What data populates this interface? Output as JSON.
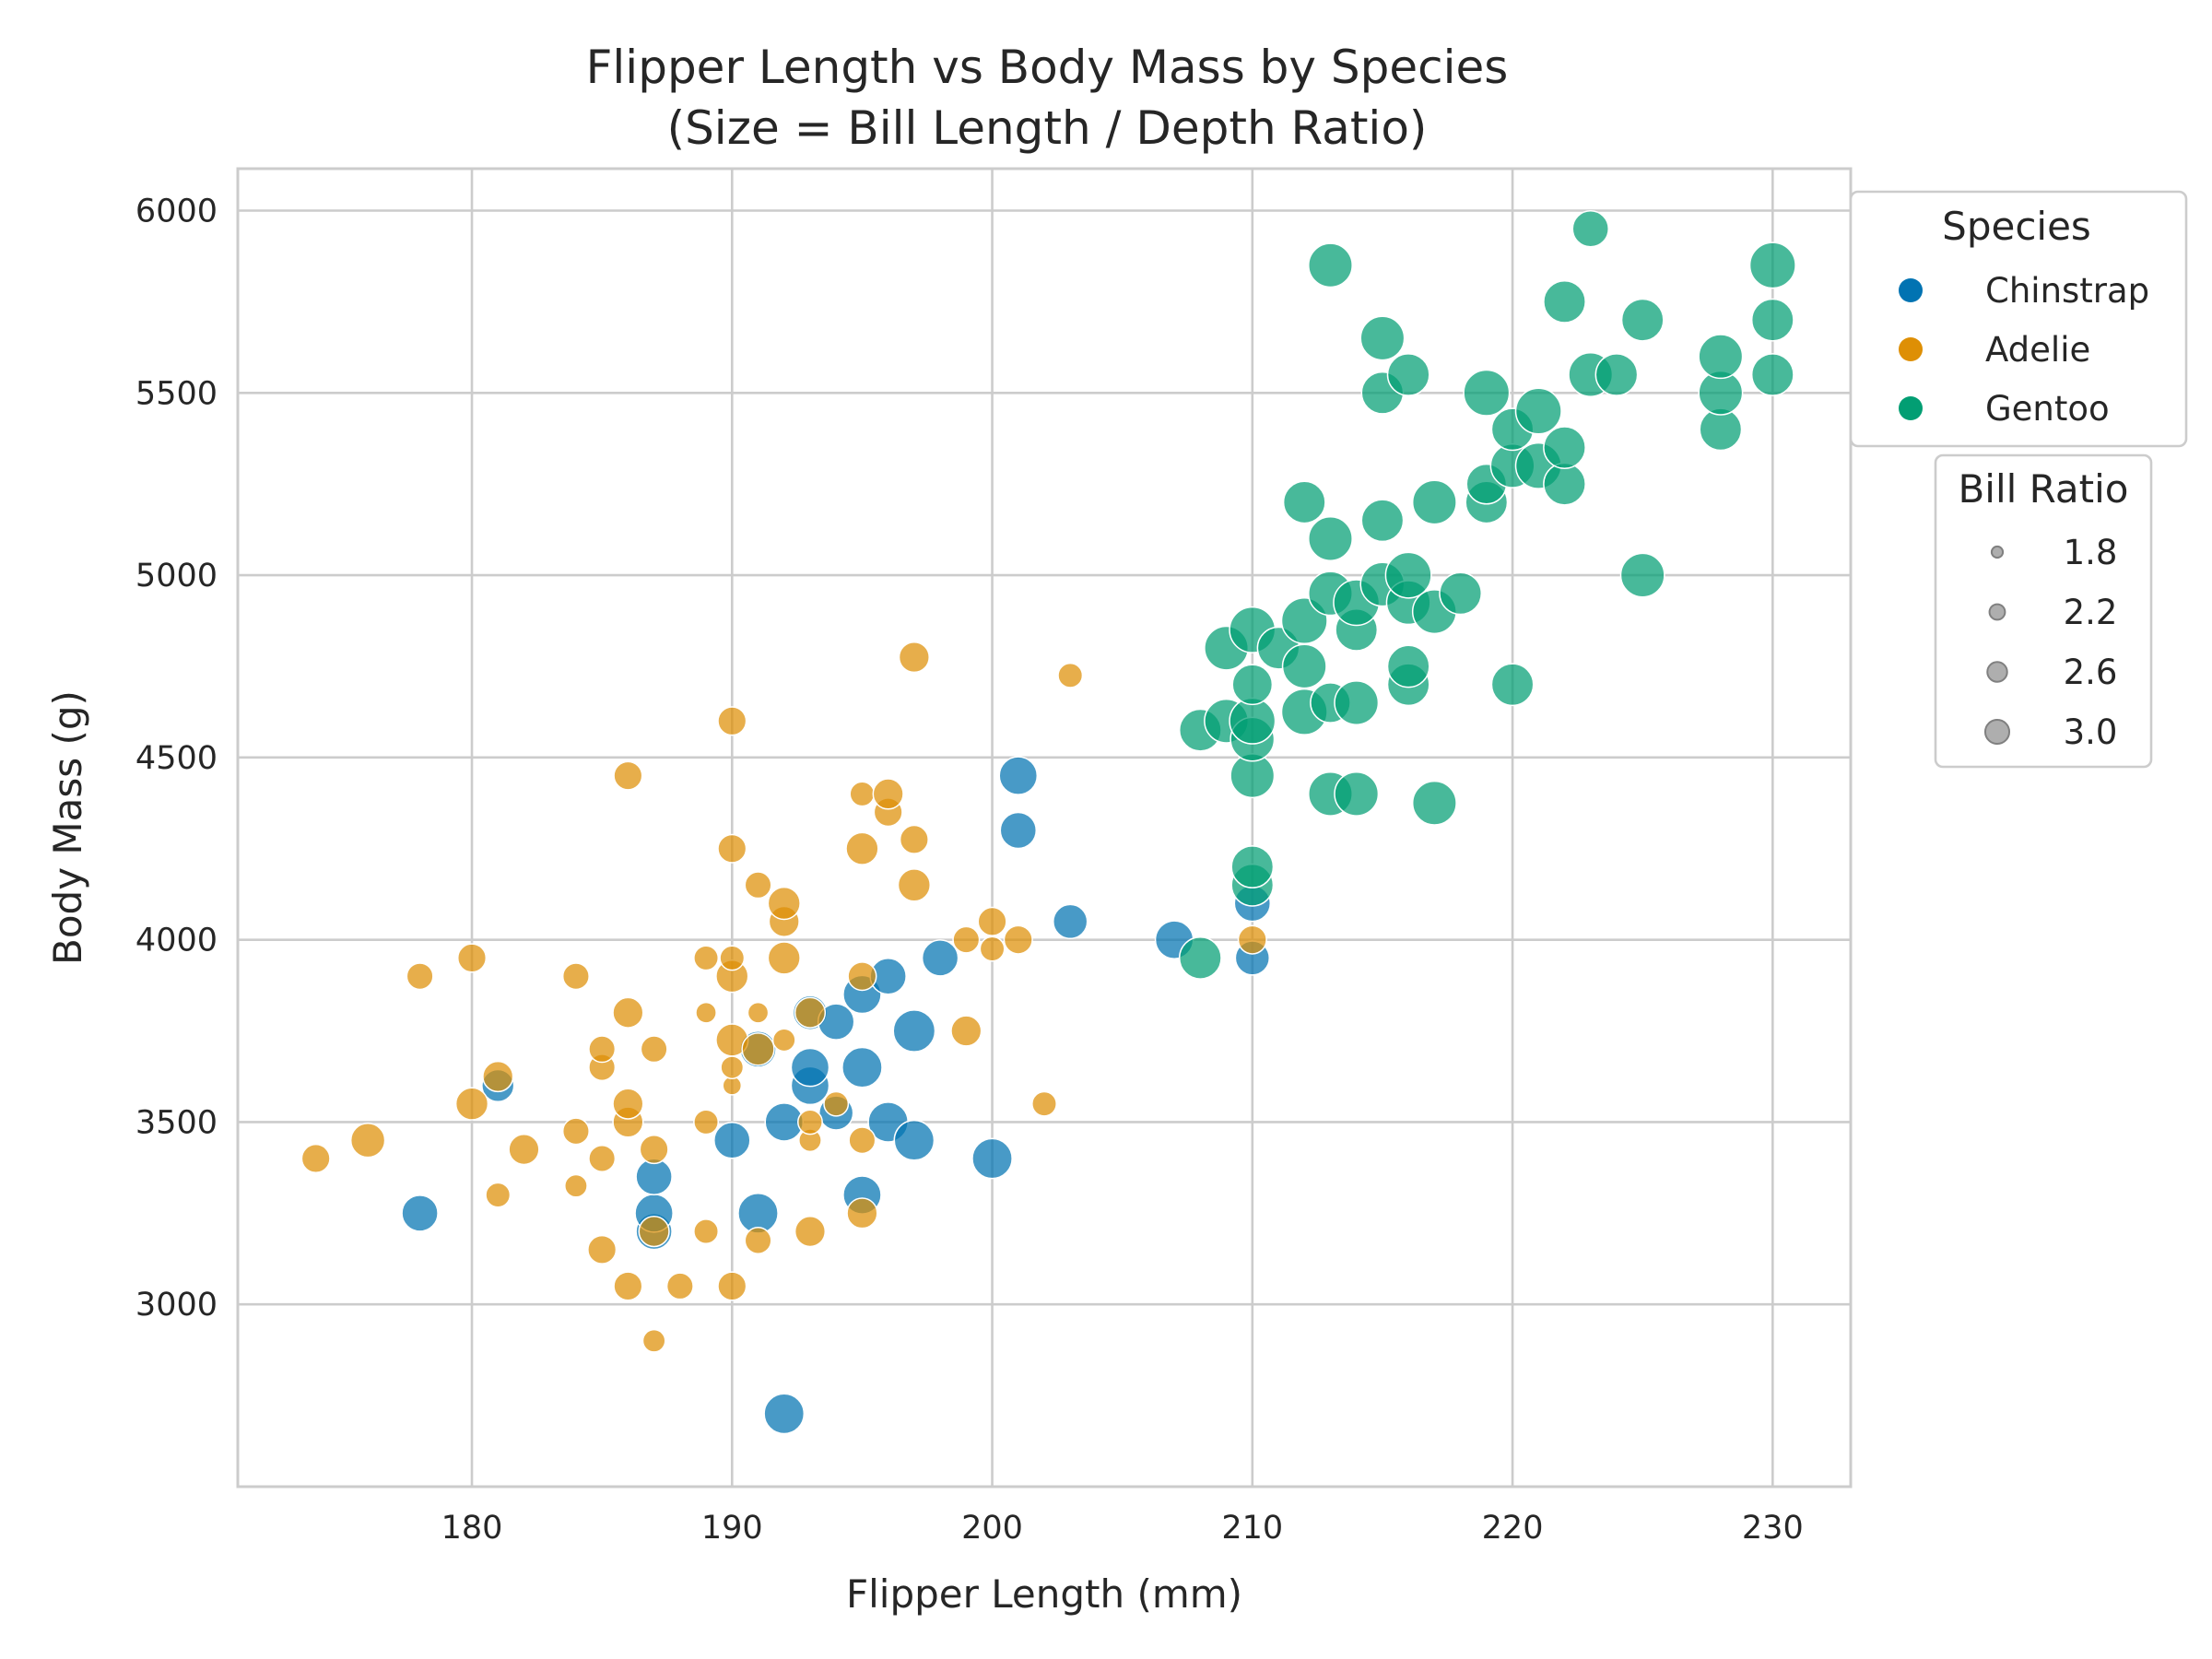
{
  "chart_data": {
    "type": "scatter",
    "title": "Flipper Length vs Body Mass by Species",
    "subtitle": "(Size = Bill Length / Depth Ratio)",
    "xlabel": "Flipper Length (mm)",
    "ylabel": "Body Mass (g)",
    "xlim": [
      171,
      233
    ],
    "ylim": [
      2500,
      6115
    ],
    "x_ticks": [
      180,
      190,
      200,
      210,
      220,
      230
    ],
    "y_ticks": [
      3000,
      3500,
      4000,
      4500,
      5000,
      5500,
      6000
    ],
    "grid": true,
    "size_encoding": {
      "title": "Bill Ratio",
      "legend_values": [
        "1.8",
        "2.2",
        "2.6",
        "3.0"
      ]
    },
    "legend": {
      "title": "Species",
      "placement": "outside-right-top"
    },
    "series": [
      {
        "name": "Chinstrap",
        "color": "#0173b2",
        "points": [
          {
            "x": 178,
            "y": 3250,
            "ratio": 2.6
          },
          {
            "x": 181,
            "y": 3600,
            "ratio": 2.4
          },
          {
            "x": 187,
            "y": 3200,
            "ratio": 2.6
          },
          {
            "x": 187,
            "y": 3250,
            "ratio": 2.7
          },
          {
            "x": 187,
            "y": 3350,
            "ratio": 2.6
          },
          {
            "x": 190,
            "y": 3450,
            "ratio": 2.6
          },
          {
            "x": 191,
            "y": 3250,
            "ratio": 2.8
          },
          {
            "x": 191,
            "y": 3700,
            "ratio": 2.6
          },
          {
            "x": 192,
            "y": 2700,
            "ratio": 2.8
          },
          {
            "x": 192,
            "y": 3500,
            "ratio": 2.7
          },
          {
            "x": 193,
            "y": 3600,
            "ratio": 2.7
          },
          {
            "x": 193,
            "y": 3650,
            "ratio": 2.7
          },
          {
            "x": 193,
            "y": 3800,
            "ratio": 2.5
          },
          {
            "x": 194,
            "y": 3525,
            "ratio": 2.5
          },
          {
            "x": 194,
            "y": 3775,
            "ratio": 2.6
          },
          {
            "x": 195,
            "y": 3300,
            "ratio": 2.7
          },
          {
            "x": 195,
            "y": 3650,
            "ratio": 2.8
          },
          {
            "x": 195,
            "y": 3850,
            "ratio": 2.7
          },
          {
            "x": 196,
            "y": 3500,
            "ratio": 2.8
          },
          {
            "x": 196,
            "y": 3900,
            "ratio": 2.6
          },
          {
            "x": 197,
            "y": 3450,
            "ratio": 2.8
          },
          {
            "x": 197,
            "y": 3750,
            "ratio": 2.9
          },
          {
            "x": 198,
            "y": 3950,
            "ratio": 2.6
          },
          {
            "x": 200,
            "y": 3400,
            "ratio": 2.8
          },
          {
            "x": 201,
            "y": 4300,
            "ratio": 2.6
          },
          {
            "x": 201,
            "y": 4450,
            "ratio": 2.7
          },
          {
            "x": 203,
            "y": 4050,
            "ratio": 2.5
          },
          {
            "x": 207,
            "y": 4000,
            "ratio": 2.7
          },
          {
            "x": 210,
            "y": 3950,
            "ratio": 2.5
          },
          {
            "x": 210,
            "y": 4100,
            "ratio": 2.6
          }
        ]
      },
      {
        "name": "Adelie",
        "color": "#de8f05",
        "points": [
          {
            "x": 174,
            "y": 3400,
            "ratio": 2.2
          },
          {
            "x": 176,
            "y": 3450,
            "ratio": 2.5
          },
          {
            "x": 178,
            "y": 3900,
            "ratio": 2.1
          },
          {
            "x": 180,
            "y": 3550,
            "ratio": 2.4
          },
          {
            "x": 180,
            "y": 3950,
            "ratio": 2.2
          },
          {
            "x": 181,
            "y": 3300,
            "ratio": 2.0
          },
          {
            "x": 181,
            "y": 3625,
            "ratio": 2.3
          },
          {
            "x": 182,
            "y": 3425,
            "ratio": 2.3
          },
          {
            "x": 184,
            "y": 3325,
            "ratio": 1.9
          },
          {
            "x": 184,
            "y": 3475,
            "ratio": 2.1
          },
          {
            "x": 184,
            "y": 3900,
            "ratio": 2.1
          },
          {
            "x": 185,
            "y": 3150,
            "ratio": 2.2
          },
          {
            "x": 185,
            "y": 3400,
            "ratio": 2.1
          },
          {
            "x": 185,
            "y": 3650,
            "ratio": 2.1
          },
          {
            "x": 185,
            "y": 3700,
            "ratio": 2.1
          },
          {
            "x": 186,
            "y": 3050,
            "ratio": 2.2
          },
          {
            "x": 186,
            "y": 3500,
            "ratio": 2.3
          },
          {
            "x": 186,
            "y": 3550,
            "ratio": 2.3
          },
          {
            "x": 186,
            "y": 3800,
            "ratio": 2.3
          },
          {
            "x": 186,
            "y": 4450,
            "ratio": 2.2
          },
          {
            "x": 187,
            "y": 2900,
            "ratio": 1.9
          },
          {
            "x": 187,
            "y": 3200,
            "ratio": 2.3
          },
          {
            "x": 187,
            "y": 3425,
            "ratio": 2.2
          },
          {
            "x": 187,
            "y": 3700,
            "ratio": 2.1
          },
          {
            "x": 188,
            "y": 3050,
            "ratio": 2.1
          },
          {
            "x": 189,
            "y": 3200,
            "ratio": 2.0
          },
          {
            "x": 189,
            "y": 3500,
            "ratio": 2.0
          },
          {
            "x": 189,
            "y": 3800,
            "ratio": 1.8
          },
          {
            "x": 189,
            "y": 3950,
            "ratio": 2.0
          },
          {
            "x": 190,
            "y": 3050,
            "ratio": 2.2
          },
          {
            "x": 190,
            "y": 3600,
            "ratio": 1.7
          },
          {
            "x": 190,
            "y": 3650,
            "ratio": 1.9
          },
          {
            "x": 190,
            "y": 3725,
            "ratio": 2.4
          },
          {
            "x": 190,
            "y": 3900,
            "ratio": 2.4
          },
          {
            "x": 190,
            "y": 3950,
            "ratio": 2.0
          },
          {
            "x": 190,
            "y": 4250,
            "ratio": 2.2
          },
          {
            "x": 190,
            "y": 4600,
            "ratio": 2.2
          },
          {
            "x": 191,
            "y": 3175,
            "ratio": 2.1
          },
          {
            "x": 191,
            "y": 3700,
            "ratio": 2.4
          },
          {
            "x": 191,
            "y": 3800,
            "ratio": 1.8
          },
          {
            "x": 191,
            "y": 4150,
            "ratio": 2.1
          },
          {
            "x": 192,
            "y": 3725,
            "ratio": 1.9
          },
          {
            "x": 192,
            "y": 3950,
            "ratio": 2.4
          },
          {
            "x": 192,
            "y": 4050,
            "ratio": 2.3
          },
          {
            "x": 192,
            "y": 4100,
            "ratio": 2.4
          },
          {
            "x": 193,
            "y": 3200,
            "ratio": 2.3
          },
          {
            "x": 193,
            "y": 3450,
            "ratio": 1.9
          },
          {
            "x": 193,
            "y": 3500,
            "ratio": 2.0
          },
          {
            "x": 193,
            "y": 3800,
            "ratio": 2.3
          },
          {
            "x": 194,
            "y": 3550,
            "ratio": 2.0
          },
          {
            "x": 195,
            "y": 3250,
            "ratio": 2.3
          },
          {
            "x": 195,
            "y": 3450,
            "ratio": 2.1
          },
          {
            "x": 195,
            "y": 3900,
            "ratio": 2.2
          },
          {
            "x": 195,
            "y": 4250,
            "ratio": 2.4
          },
          {
            "x": 195,
            "y": 4400,
            "ratio": 2.0
          },
          {
            "x": 196,
            "y": 4350,
            "ratio": 2.2
          },
          {
            "x": 196,
            "y": 4400,
            "ratio": 2.3
          },
          {
            "x": 197,
            "y": 4150,
            "ratio": 2.4
          },
          {
            "x": 197,
            "y": 4275,
            "ratio": 2.2
          },
          {
            "x": 197,
            "y": 4775,
            "ratio": 2.3
          },
          {
            "x": 199,
            "y": 3750,
            "ratio": 2.3
          },
          {
            "x": 199,
            "y": 4000,
            "ratio": 2.1
          },
          {
            "x": 200,
            "y": 3975,
            "ratio": 2.0
          },
          {
            "x": 200,
            "y": 4050,
            "ratio": 2.2
          },
          {
            "x": 201,
            "y": 4000,
            "ratio": 2.2
          },
          {
            "x": 202,
            "y": 3550,
            "ratio": 2.0
          },
          {
            "x": 203,
            "y": 4725,
            "ratio": 2.0
          },
          {
            "x": 210,
            "y": 4000,
            "ratio": 2.2
          }
        ]
      },
      {
        "name": "Gentoo",
        "color": "#029e73",
        "points": [
          {
            "x": 208,
            "y": 3950,
            "ratio": 2.9
          },
          {
            "x": 208,
            "y": 4575,
            "ratio": 2.9
          },
          {
            "x": 209,
            "y": 4600,
            "ratio": 3.0
          },
          {
            "x": 209,
            "y": 4800,
            "ratio": 3.0
          },
          {
            "x": 210,
            "y": 4150,
            "ratio": 2.9
          },
          {
            "x": 210,
            "y": 4200,
            "ratio": 2.9
          },
          {
            "x": 210,
            "y": 4450,
            "ratio": 3.0
          },
          {
            "x": 210,
            "y": 4550,
            "ratio": 3.0
          },
          {
            "x": 210,
            "y": 4600,
            "ratio": 3.1
          },
          {
            "x": 210,
            "y": 4700,
            "ratio": 2.8
          },
          {
            "x": 210,
            "y": 4850,
            "ratio": 3.1
          },
          {
            "x": 211,
            "y": 4800,
            "ratio": 2.9
          },
          {
            "x": 212,
            "y": 4625,
            "ratio": 3.1
          },
          {
            "x": 212,
            "y": 4750,
            "ratio": 3.0
          },
          {
            "x": 212,
            "y": 4875,
            "ratio": 3.1
          },
          {
            "x": 212,
            "y": 5200,
            "ratio": 2.9
          },
          {
            "x": 213,
            "y": 4400,
            "ratio": 3.0
          },
          {
            "x": 213,
            "y": 4650,
            "ratio": 2.8
          },
          {
            "x": 213,
            "y": 4950,
            "ratio": 3.0
          },
          {
            "x": 213,
            "y": 5100,
            "ratio": 3.0
          },
          {
            "x": 213,
            "y": 5850,
            "ratio": 3.0
          },
          {
            "x": 214,
            "y": 4400,
            "ratio": 3.0
          },
          {
            "x": 214,
            "y": 4650,
            "ratio": 3.0
          },
          {
            "x": 214,
            "y": 4850,
            "ratio": 2.9
          },
          {
            "x": 214,
            "y": 4925,
            "ratio": 3.1
          },
          {
            "x": 215,
            "y": 4975,
            "ratio": 3.0
          },
          {
            "x": 215,
            "y": 5150,
            "ratio": 2.9
          },
          {
            "x": 215,
            "y": 5500,
            "ratio": 2.9
          },
          {
            "x": 215,
            "y": 5650,
            "ratio": 3.0
          },
          {
            "x": 216,
            "y": 4700,
            "ratio": 2.9
          },
          {
            "x": 216,
            "y": 4750,
            "ratio": 2.9
          },
          {
            "x": 216,
            "y": 4925,
            "ratio": 3.0
          },
          {
            "x": 216,
            "y": 5000,
            "ratio": 3.1
          },
          {
            "x": 216,
            "y": 5550,
            "ratio": 2.9
          },
          {
            "x": 217,
            "y": 4375,
            "ratio": 3.0
          },
          {
            "x": 217,
            "y": 4900,
            "ratio": 3.0
          },
          {
            "x": 217,
            "y": 5200,
            "ratio": 3.0
          },
          {
            "x": 218,
            "y": 4950,
            "ratio": 2.9
          },
          {
            "x": 219,
            "y": 5200,
            "ratio": 2.9
          },
          {
            "x": 219,
            "y": 5250,
            "ratio": 2.8
          },
          {
            "x": 219,
            "y": 5500,
            "ratio": 3.1
          },
          {
            "x": 220,
            "y": 4700,
            "ratio": 2.9
          },
          {
            "x": 220,
            "y": 5300,
            "ratio": 3.0
          },
          {
            "x": 220,
            "y": 5400,
            "ratio": 2.9
          },
          {
            "x": 221,
            "y": 5300,
            "ratio": 3.1
          },
          {
            "x": 221,
            "y": 5450,
            "ratio": 3.1
          },
          {
            "x": 222,
            "y": 5250,
            "ratio": 2.9
          },
          {
            "x": 222,
            "y": 5350,
            "ratio": 2.9
          },
          {
            "x": 222,
            "y": 5750,
            "ratio": 2.9
          },
          {
            "x": 223,
            "y": 5550,
            "ratio": 3.0
          },
          {
            "x": 223,
            "y": 5950,
            "ratio": 2.6
          },
          {
            "x": 224,
            "y": 5550,
            "ratio": 2.9
          },
          {
            "x": 225,
            "y": 5000,
            "ratio": 3.0
          },
          {
            "x": 225,
            "y": 5700,
            "ratio": 2.9
          },
          {
            "x": 228,
            "y": 5400,
            "ratio": 2.9
          },
          {
            "x": 228,
            "y": 5500,
            "ratio": 3.0
          },
          {
            "x": 228,
            "y": 5600,
            "ratio": 3.0
          },
          {
            "x": 230,
            "y": 5550,
            "ratio": 2.9
          },
          {
            "x": 230,
            "y": 5700,
            "ratio": 2.9
          },
          {
            "x": 230,
            "y": 5850,
            "ratio": 3.1
          }
        ]
      }
    ]
  }
}
